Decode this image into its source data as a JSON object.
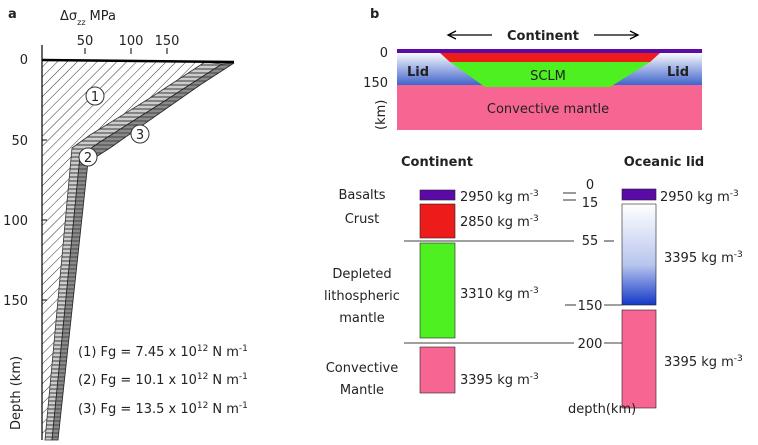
{
  "panel_a": {
    "label": "a",
    "top_axis": {
      "symbol": "Δσ",
      "subscript": "zz",
      "unit": "MPa",
      "ticks": [
        50,
        100,
        150
      ]
    },
    "depth_axis": {
      "title": "Depth (km)",
      "ticks": [
        0,
        50,
        100,
        150
      ]
    },
    "curve_labels": [
      "1",
      "2",
      "3"
    ],
    "legend": [
      {
        "prefix": "(1) Fg = 7.45 x 10",
        "exponent": "12",
        "unit": "N m",
        "unit_exponent": "-1"
      },
      {
        "prefix": "(2) Fg = 10.1 x 10",
        "exponent": "12",
        "unit": "N m",
        "unit_exponent": "-1"
      },
      {
        "prefix": "(3) Fg = 13.5 x 10",
        "exponent": "12",
        "unit": "N m",
        "unit_exponent": "-1"
      }
    ]
  },
  "panel_b": {
    "label": "b",
    "section": {
      "title": "Continent",
      "lid_left": "Lid",
      "lid_right": "Lid",
      "sclm": "SCLM",
      "mantle": "Convective mantle",
      "depth_ticks": [
        0,
        150
      ],
      "depth_unit": "(km)"
    },
    "continent": {
      "title": "Continent",
      "layers": [
        {
          "name": [
            "Basalts"
          ],
          "density": "2950 kg m",
          "exponent": "-3"
        },
        {
          "name": [
            "Crust"
          ],
          "density": "2850 kg m",
          "exponent": "-3"
        },
        {
          "name": [
            "Depleted",
            "lithospheric",
            "mantle"
          ],
          "density": "3310 kg m",
          "exponent": "-3"
        },
        {
          "name": [
            "Convective",
            "Mantle"
          ],
          "density": "3395 kg m",
          "exponent": "-3"
        }
      ]
    },
    "oceanic": {
      "title": "Oceanic lid",
      "layers": [
        {
          "density": "2950 kg m",
          "exponent": "-3"
        },
        {
          "density": "3395 kg m",
          "exponent": "-3"
        },
        {
          "density": "3395 kg m",
          "exponent": "-3"
        }
      ]
    },
    "depths": [
      0,
      15,
      55,
      150,
      200
    ],
    "depth_unit": "depth(km)"
  }
}
